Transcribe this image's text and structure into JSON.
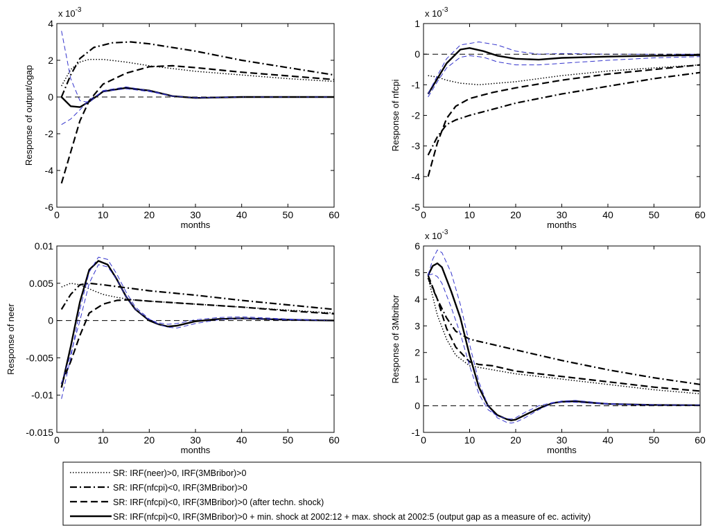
{
  "chart_data": [
    {
      "type": "line",
      "ylabel": "Response of output/ogap",
      "xlabel": "months",
      "exponent_label": "x 10",
      "exponent_power": "-3",
      "xlim": [
        0,
        60
      ],
      "ylim": [
        -6,
        4
      ],
      "xticks": [
        0,
        10,
        20,
        30,
        40,
        50,
        60
      ],
      "yticks": [
        -6,
        -4,
        -2,
        0,
        2,
        4
      ],
      "xtick_labels": [
        "0",
        "10",
        "20",
        "30",
        "40",
        "50",
        "60"
      ],
      "ytick_labels": [
        "-6",
        "-4",
        "-2",
        "0",
        "2",
        "4"
      ],
      "grid": false,
      "series": [
        {
          "style": "dotted",
          "color": "#000000",
          "x": [
            1,
            3,
            5,
            7,
            10,
            15,
            20,
            30,
            40,
            50,
            60
          ],
          "values": [
            0.6,
            1.5,
            1.9,
            2.05,
            2.05,
            1.9,
            1.7,
            1.4,
            1.2,
            1.0,
            0.85
          ]
        },
        {
          "style": "dashdot",
          "color": "#000000",
          "x": [
            1,
            3,
            5,
            8,
            12,
            16,
            20,
            30,
            40,
            50,
            60
          ],
          "values": [
            0.0,
            1.2,
            2.1,
            2.7,
            2.95,
            3.0,
            2.9,
            2.5,
            2.0,
            1.6,
            1.2
          ]
        },
        {
          "style": "dashed",
          "color": "#000000",
          "x": [
            1,
            3,
            5,
            7,
            10,
            15,
            20,
            25,
            30,
            40,
            50,
            60
          ],
          "values": [
            -4.7,
            -3.0,
            -1.3,
            -0.2,
            0.7,
            1.3,
            1.65,
            1.7,
            1.6,
            1.35,
            1.15,
            0.95
          ]
        },
        {
          "style": "solid",
          "color": "#000000",
          "x": [
            1,
            3,
            5,
            7,
            10,
            15,
            20,
            25,
            30,
            40,
            50,
            60
          ],
          "values": [
            0.0,
            -0.5,
            -0.55,
            -0.25,
            0.3,
            0.5,
            0.35,
            0.05,
            -0.05,
            0.0,
            0.0,
            0.0
          ]
        },
        {
          "style": "thin-dashed",
          "color": "#3333cc",
          "x": [
            1,
            3,
            5,
            7,
            10,
            15,
            20,
            25,
            30,
            40,
            50,
            60
          ],
          "values": [
            3.6,
            1.0,
            -0.2,
            -0.3,
            0.35,
            0.55,
            0.35,
            0.05,
            -0.03,
            0.0,
            0.0,
            0.0
          ]
        },
        {
          "style": "thin-dashed",
          "color": "#3333cc",
          "x": [
            1,
            3,
            5,
            7,
            10,
            15,
            20,
            25,
            30,
            40,
            50,
            60
          ],
          "values": [
            -1.5,
            -1.2,
            -0.7,
            -0.15,
            0.3,
            0.45,
            0.3,
            0.05,
            -0.05,
            0.0,
            0.0,
            0.0
          ]
        },
        {
          "style": "reference",
          "color": "#000000",
          "x": [
            0,
            60
          ],
          "values": [
            0,
            0
          ]
        }
      ]
    },
    {
      "type": "line",
      "ylabel": "Response of nfcpi",
      "xlabel": "months",
      "exponent_label": "x 10",
      "exponent_power": "-3",
      "xlim": [
        0,
        60
      ],
      "ylim": [
        -5,
        1
      ],
      "xticks": [
        0,
        10,
        20,
        30,
        40,
        50,
        60
      ],
      "yticks": [
        -5,
        -4,
        -3,
        -2,
        -1,
        0,
        1
      ],
      "xtick_labels": [
        "0",
        "10",
        "20",
        "30",
        "40",
        "50",
        "60"
      ],
      "ytick_labels": [
        "-5",
        "-4",
        "-3",
        "-2",
        "-1",
        "0",
        "1"
      ],
      "grid": false,
      "series": [
        {
          "style": "dotted",
          "color": "#000000",
          "x": [
            1,
            3,
            5,
            8,
            12,
            16,
            20,
            30,
            40,
            50,
            60
          ],
          "values": [
            -0.7,
            -0.75,
            -0.85,
            -0.95,
            -1.0,
            -0.95,
            -0.9,
            -0.7,
            -0.55,
            -0.45,
            -0.35
          ]
        },
        {
          "style": "dashdot",
          "color": "#000000",
          "x": [
            1,
            3,
            5,
            7,
            10,
            15,
            20,
            30,
            40,
            50,
            60
          ],
          "values": [
            -3.3,
            -2.7,
            -2.3,
            -2.15,
            -2.0,
            -1.8,
            -1.6,
            -1.3,
            -1.05,
            -0.8,
            -0.6
          ]
        },
        {
          "style": "dashed",
          "color": "#000000",
          "x": [
            1,
            3,
            5,
            7,
            10,
            15,
            20,
            30,
            40,
            50,
            60
          ],
          "values": [
            -4.0,
            -2.9,
            -2.1,
            -1.7,
            -1.45,
            -1.25,
            -1.1,
            -0.85,
            -0.65,
            -0.5,
            -0.35
          ]
        },
        {
          "style": "solid",
          "color": "#000000",
          "x": [
            1,
            3,
            5,
            8,
            10,
            13,
            16,
            20,
            25,
            30,
            40,
            50,
            60
          ],
          "values": [
            -1.3,
            -0.8,
            -0.3,
            0.15,
            0.2,
            0.1,
            -0.05,
            -0.15,
            -0.18,
            -0.12,
            -0.08,
            -0.05,
            -0.03
          ]
        },
        {
          "style": "thin-dashed",
          "color": "#3333cc",
          "x": [
            1,
            3,
            5,
            8,
            12,
            16,
            20,
            25,
            30,
            40,
            50,
            60
          ],
          "values": [
            -1.3,
            -0.7,
            -0.15,
            0.3,
            0.4,
            0.3,
            0.1,
            0.0,
            0.02,
            0.0,
            0.0,
            0.0
          ]
        },
        {
          "style": "thin-dashed",
          "color": "#3333cc",
          "x": [
            1,
            3,
            5,
            8,
            10,
            13,
            16,
            20,
            25,
            30,
            40,
            50,
            60
          ],
          "values": [
            -1.4,
            -0.9,
            -0.45,
            -0.1,
            -0.05,
            -0.1,
            -0.25,
            -0.35,
            -0.35,
            -0.3,
            -0.2,
            -0.12,
            -0.08
          ]
        },
        {
          "style": "reference",
          "color": "#000000",
          "x": [
            0,
            60
          ],
          "values": [
            0,
            0
          ]
        }
      ]
    },
    {
      "type": "line",
      "ylabel": "Response of neer",
      "xlabel": "months",
      "xlim": [
        0,
        60
      ],
      "ylim": [
        -0.015,
        0.01
      ],
      "xticks": [
        0,
        10,
        20,
        30,
        40,
        50,
        60
      ],
      "yticks": [
        -0.015,
        -0.01,
        -0.005,
        0,
        0.005,
        0.01
      ],
      "xtick_labels": [
        "0",
        "10",
        "20",
        "30",
        "40",
        "50",
        "60"
      ],
      "ytick_labels": [
        "-0.015",
        "-0.01",
        "-0.005",
        "0",
        "0.005",
        "0.01"
      ],
      "grid": false,
      "series": [
        {
          "style": "dotted",
          "color": "#000000",
          "x": [
            1,
            3,
            5,
            8,
            10,
            13,
            16,
            20,
            30,
            40,
            50,
            60
          ],
          "values": [
            0.0045,
            0.005,
            0.0048,
            0.004,
            0.0035,
            0.0031,
            0.0028,
            0.0026,
            0.0022,
            0.0018,
            0.0014,
            0.001
          ]
        },
        {
          "style": "dashdot",
          "color": "#000000",
          "x": [
            1,
            3,
            5,
            7,
            10,
            15,
            20,
            30,
            40,
            50,
            60
          ],
          "values": [
            0.0015,
            0.0035,
            0.0048,
            0.005,
            0.0048,
            0.0044,
            0.004,
            0.0034,
            0.0027,
            0.0021,
            0.0015
          ]
        },
        {
          "style": "dashed",
          "color": "#000000",
          "x": [
            1,
            3,
            5,
            7,
            10,
            13,
            16,
            20,
            30,
            40,
            50,
            60
          ],
          "values": [
            -0.0085,
            -0.0055,
            -0.002,
            0.001,
            0.0022,
            0.0027,
            0.0028,
            0.0026,
            0.0022,
            0.0018,
            0.0013,
            0.0009
          ]
        },
        {
          "style": "solid",
          "color": "#000000",
          "x": [
            1,
            3,
            5,
            7,
            9,
            11,
            13,
            15,
            17,
            20,
            22,
            24,
            26,
            30,
            35,
            40,
            50,
            60
          ],
          "values": [
            -0.009,
            -0.0035,
            0.0025,
            0.0068,
            0.008,
            0.0075,
            0.0055,
            0.0032,
            0.0015,
            0.0,
            -0.0005,
            -0.0008,
            -0.0007,
            -0.0001,
            0.0002,
            0.0003,
            0.0001,
            0.0
          ]
        },
        {
          "style": "thin-dashed",
          "color": "#3333cc",
          "x": [
            1,
            3,
            5,
            7,
            9,
            11,
            13,
            15,
            17,
            20,
            22,
            24,
            26,
            30,
            35,
            40,
            50,
            60
          ],
          "values": [
            -0.0105,
            -0.005,
            0.0015,
            0.0065,
            0.0085,
            0.0082,
            0.0062,
            0.0038,
            0.0018,
            0.0002,
            -0.0005,
            -0.0009,
            -0.001,
            -0.0004,
            0.0001,
            0.0003,
            0.0001,
            0.0
          ]
        },
        {
          "style": "thin-dashed",
          "color": "#3333cc",
          "x": [
            1,
            3,
            5,
            7,
            9,
            11,
            13,
            15,
            17,
            20,
            22,
            24,
            26,
            30,
            35,
            40,
            50,
            60
          ],
          "values": [
            -0.0085,
            -0.0045,
            0.0,
            0.005,
            0.0075,
            0.0072,
            0.0055,
            0.0032,
            0.0015,
            0.0001,
            -0.0003,
            -0.0005,
            -0.0004,
            0.0001,
            0.0004,
            0.0005,
            0.0002,
            0.0
          ]
        },
        {
          "style": "reference",
          "color": "#000000",
          "x": [
            0,
            60
          ],
          "values": [
            0,
            0
          ]
        }
      ]
    },
    {
      "type": "line",
      "ylabel": "Response of 3Mbribor",
      "xlabel": "months",
      "exponent_label": "x 10",
      "exponent_power": "-3",
      "xlim": [
        0,
        60
      ],
      "ylim": [
        -1,
        6
      ],
      "xticks": [
        0,
        10,
        20,
        30,
        40,
        50,
        60
      ],
      "yticks": [
        -1,
        0,
        1,
        2,
        3,
        4,
        5,
        6
      ],
      "xtick_labels": [
        "0",
        "10",
        "20",
        "30",
        "40",
        "50",
        "60"
      ],
      "ytick_labels": [
        "-1",
        "0",
        "1",
        "2",
        "3",
        "4",
        "5",
        "6"
      ],
      "grid": false,
      "series": [
        {
          "style": "dotted",
          "color": "#000000",
          "x": [
            1,
            2,
            3,
            5,
            7,
            10,
            15,
            20,
            30,
            40,
            50,
            60
          ],
          "values": [
            4.8,
            4.1,
            3.4,
            2.5,
            1.9,
            1.5,
            1.35,
            1.2,
            1.0,
            0.8,
            0.6,
            0.45
          ]
        },
        {
          "style": "dashdot",
          "color": "#000000",
          "x": [
            1,
            3,
            5,
            7,
            10,
            15,
            20,
            30,
            40,
            50,
            60
          ],
          "values": [
            4.8,
            4.0,
            3.3,
            2.8,
            2.5,
            2.3,
            2.1,
            1.7,
            1.35,
            1.05,
            0.8
          ]
        },
        {
          "style": "dashed",
          "color": "#000000",
          "x": [
            1,
            3,
            5,
            7,
            10,
            12,
            15,
            20,
            30,
            40,
            50,
            60
          ],
          "values": [
            4.9,
            4.0,
            2.9,
            2.2,
            1.65,
            1.55,
            1.5,
            1.3,
            1.1,
            0.9,
            0.7,
            0.55
          ]
        },
        {
          "style": "solid",
          "color": "#000000",
          "x": [
            1,
            2,
            3,
            4,
            6,
            8,
            10,
            12,
            14,
            16,
            18,
            19,
            20,
            22,
            25,
            28,
            30,
            33,
            36,
            40,
            50,
            60
          ],
          "values": [
            4.9,
            5.25,
            5.35,
            5.2,
            4.3,
            3.3,
            1.9,
            0.7,
            0.0,
            -0.35,
            -0.5,
            -0.55,
            -0.52,
            -0.35,
            -0.1,
            0.1,
            0.15,
            0.17,
            0.12,
            0.07,
            0.03,
            0.02
          ]
        },
        {
          "style": "thin-dashed",
          "color": "#3333cc",
          "x": [
            1,
            2,
            3,
            4,
            6,
            8,
            10,
            12,
            14,
            16,
            18,
            19,
            20,
            22,
            25,
            28,
            30,
            33,
            36,
            40,
            50,
            60
          ],
          "values": [
            4.9,
            5.5,
            5.85,
            5.75,
            5.0,
            3.8,
            2.3,
            0.9,
            0.0,
            -0.45,
            -0.62,
            -0.65,
            -0.62,
            -0.45,
            -0.15,
            0.1,
            0.18,
            0.2,
            0.15,
            0.08,
            0.03,
            0.02
          ]
        },
        {
          "style": "thin-dashed",
          "color": "#3333cc",
          "x": [
            1,
            2,
            3,
            4,
            6,
            8,
            10,
            12,
            14,
            16,
            18,
            19,
            20,
            22,
            25,
            28,
            30,
            33,
            36,
            40,
            50,
            60
          ],
          "values": [
            4.9,
            4.95,
            4.85,
            4.6,
            3.7,
            2.7,
            1.5,
            0.45,
            -0.15,
            -0.38,
            -0.48,
            -0.5,
            -0.45,
            -0.25,
            0.0,
            0.12,
            0.14,
            0.13,
            0.1,
            0.06,
            0.03,
            0.02
          ]
        },
        {
          "style": "reference",
          "color": "#000000",
          "x": [
            0,
            60
          ],
          "values": [
            0,
            0
          ]
        }
      ]
    }
  ],
  "legend": {
    "placement": "bottom",
    "entries": [
      {
        "style": "dotted",
        "label": "SR: IRF(neer)>0, IRF(3MBribor)>0"
      },
      {
        "style": "dashdot",
        "label": "SR: IRF(nfcpi)<0, IRF(3MBribor)>0"
      },
      {
        "style": "dashed",
        "label": "SR: IRF(nfcpi)<0, IRF(3MBribor)>0 (after techn. shock)"
      },
      {
        "style": "solid",
        "label": "SR: IRF(nfcpi)<0, IRF(3MBribor)>0 + min. shock at 2002:12 + max. shock at 2002:5 (output gap as a measure of ec. activity)"
      }
    ]
  }
}
